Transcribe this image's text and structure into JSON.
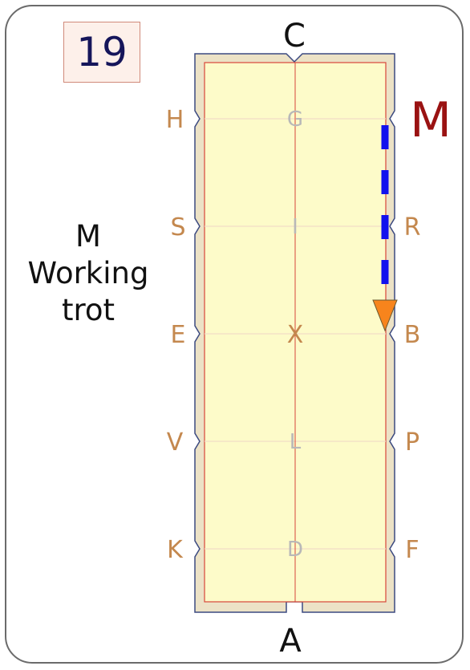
{
  "test_number": "19",
  "instruction": {
    "marker": "M",
    "line2": "Working",
    "line3": "trot"
  },
  "arena": {
    "end_markers": {
      "top": "C",
      "bottom": "A"
    },
    "left_markers": [
      "H",
      "S",
      "E",
      "V",
      "K"
    ],
    "right_markers": [
      "M",
      "R",
      "B",
      "P",
      "F"
    ],
    "center_markers": [
      "G",
      "I",
      "X",
      "L",
      "D"
    ],
    "highlight_marker": "M",
    "colors": {
      "surround": "#ece2c6",
      "sand": "#fdfbc9",
      "border_line": "#d8463a",
      "letters": "#c4884e",
      "center_letters": "#b8b8b8",
      "highlight": "#9a1212",
      "path": "#1111ee",
      "arrow": "#f7841c"
    }
  },
  "movement": {
    "from": "M",
    "to": "B",
    "gait": "Working trot"
  }
}
